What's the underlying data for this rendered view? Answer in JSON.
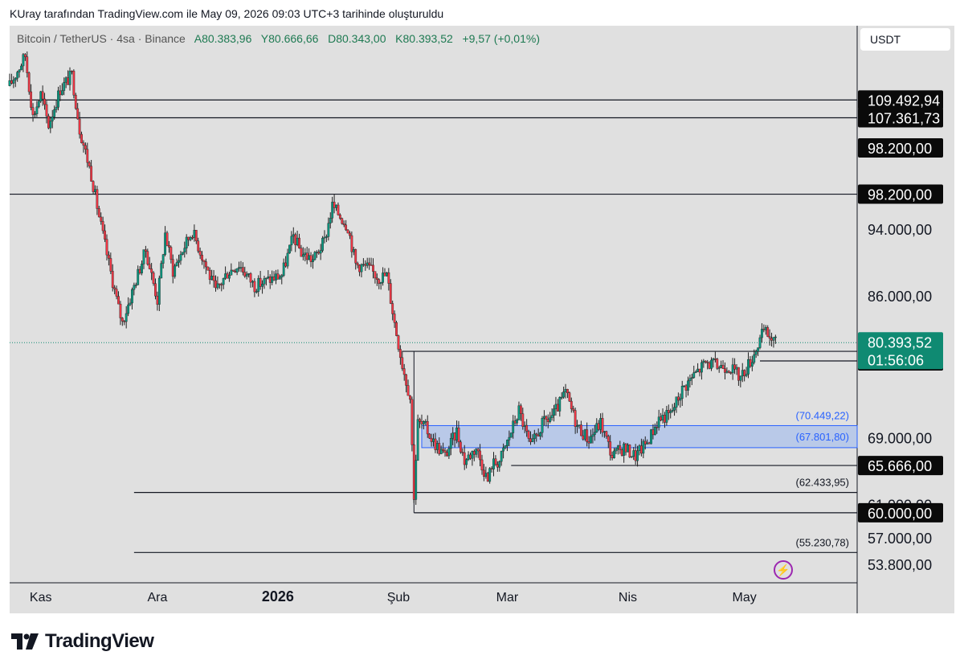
{
  "header": {
    "caption": "KUray tarafından TradingView.com ile May 09, 2026 09:03 UTC+3 tarihinde oluşturuldu"
  },
  "legend": {
    "symbol": "Bitcoin / TetherUS · 4sa · Binance",
    "open": "A80.383,96",
    "high": "Y80.666,66",
    "low": "D80.343,00",
    "close": "K80.393,52",
    "change": "+9,57 (+0,01%)"
  },
  "currency_label": "USDT",
  "brand": {
    "name": "TradingView",
    "icon": "tradingview-logo-icon"
  },
  "bolt_icon": "lightning-bolt-icon",
  "colors": {
    "up": "#089981",
    "down": "#f23645",
    "zone_fill": "#b9c9e8",
    "zone_line": "#2962ff",
    "price_badge": "#0f8a72"
  },
  "chart_data": {
    "type": "candlestick",
    "interval": "4h",
    "x_range": [
      "2025-10-24",
      "2026-05-30"
    ],
    "y_range": [
      51600,
      118400
    ],
    "x_ticks": [
      {
        "date": "2025-11-01",
        "label": "Kas",
        "bold": false
      },
      {
        "date": "2025-12-01",
        "label": "Ara",
        "bold": false
      },
      {
        "date": "2026-01-01",
        "label": "2026",
        "bold": true
      },
      {
        "date": "2026-02-01",
        "label": "Şub",
        "bold": false
      },
      {
        "date": "2026-03-01",
        "label": "Mar",
        "bold": false
      },
      {
        "date": "2026-04-01",
        "label": "Nis",
        "bold": false
      },
      {
        "date": "2026-05-01",
        "label": "May",
        "bold": false
      }
    ],
    "y_ticks": [
      {
        "value": 94000,
        "label": "94.000,00"
      },
      {
        "value": 86000,
        "label": "86.000,00"
      },
      {
        "value": 69000,
        "label": "69.000,00"
      },
      {
        "value": 61000,
        "label": "61.000,00"
      },
      {
        "value": 57000,
        "label": "57.000,00"
      },
      {
        "value": 53800,
        "label": "53.800,00"
      }
    ],
    "horizontal_lines": [
      {
        "value": 109492.94,
        "label": "109.492,94",
        "from": "2025-10-24"
      },
      {
        "value": 107361.73,
        "label": "107.361,73",
        "from": "2025-10-24"
      },
      {
        "value": 98200,
        "label": "98.200,00",
        "from": "2025-10-24"
      },
      {
        "value": 79354.67,
        "label": "79.354,67",
        "from": "2026-02-02"
      },
      {
        "value": 78203.03,
        "label": "78.203,03",
        "from": "2026-05-05"
      },
      {
        "value": 65666,
        "label": "65.666,00",
        "from": "2026-03-02"
      },
      {
        "value": 62433.95,
        "label": "(62.433,95)",
        "from": "2025-11-25"
      },
      {
        "value": 60000,
        "label": "60.000,00",
        "from": "2026-02-05"
      },
      {
        "value": 55230.78,
        "label": "(55.230,78)",
        "from": "2025-11-25"
      }
    ],
    "extra_price_badge": {
      "value": 98200,
      "label": "98.200,00"
    },
    "zone": {
      "from": "2026-02-07",
      "top": 70449.22,
      "bottom": 67801.8,
      "top_label": "(70.449,22)",
      "bottom_label": "(67.801,80)"
    },
    "last_price": {
      "value": 80393.52,
      "label": "80.393,52",
      "countdown": "01:56:06"
    },
    "path_points": [
      [
        "2025-10-24",
        111200
      ],
      [
        "2025-10-28",
        114800
      ],
      [
        "2025-10-30",
        107500
      ],
      [
        "2025-11-01",
        110200
      ],
      [
        "2025-11-03",
        106500
      ],
      [
        "2025-11-06",
        110800
      ],
      [
        "2025-11-09",
        112500
      ],
      [
        "2025-11-11",
        106000
      ],
      [
        "2025-11-14",
        100500
      ],
      [
        "2025-11-16",
        95500
      ],
      [
        "2025-11-18",
        91000
      ],
      [
        "2025-11-21",
        84500
      ],
      [
        "2025-11-22",
        82800
      ],
      [
        "2025-11-25",
        87200
      ],
      [
        "2025-11-28",
        91500
      ],
      [
        "2025-12-01",
        85500
      ],
      [
        "2025-12-03",
        93500
      ],
      [
        "2025-12-05",
        89000
      ],
      [
        "2025-12-08",
        92000
      ],
      [
        "2025-12-10",
        93800
      ],
      [
        "2025-12-13",
        90200
      ],
      [
        "2025-12-16",
        86500
      ],
      [
        "2025-12-19",
        88800
      ],
      [
        "2025-12-22",
        89800
      ],
      [
        "2025-12-26",
        87200
      ],
      [
        "2025-12-30",
        88000
      ],
      [
        "2026-01-02",
        88500
      ],
      [
        "2026-01-05",
        93200
      ],
      [
        "2026-01-07",
        91200
      ],
      [
        "2026-01-10",
        90300
      ],
      [
        "2026-01-13",
        92600
      ],
      [
        "2026-01-15",
        96800
      ],
      [
        "2026-01-17",
        95600
      ],
      [
        "2026-01-19",
        94300
      ],
      [
        "2026-01-21",
        89800
      ],
      [
        "2026-01-24",
        89400
      ],
      [
        "2026-01-27",
        88200
      ],
      [
        "2026-01-29",
        88500
      ],
      [
        "2026-01-31",
        82800
      ],
      [
        "2026-02-02",
        77800
      ],
      [
        "2026-02-04",
        73800
      ],
      [
        "2026-02-05",
        62200
      ],
      [
        "2026-02-06",
        70800
      ],
      [
        "2026-02-08",
        70200
      ],
      [
        "2026-02-10",
        68500
      ],
      [
        "2026-02-13",
        66800
      ],
      [
        "2026-02-16",
        69800
      ],
      [
        "2026-02-18",
        66200
      ],
      [
        "2026-02-21",
        67800
      ],
      [
        "2026-02-24",
        63800
      ],
      [
        "2026-02-25",
        65800
      ],
      [
        "2026-02-27",
        66200
      ],
      [
        "2026-03-01",
        68500
      ],
      [
        "2026-03-04",
        72300
      ],
      [
        "2026-03-07",
        67800
      ],
      [
        "2026-03-10",
        70600
      ],
      [
        "2026-03-13",
        71800
      ],
      [
        "2026-03-16",
        74400
      ],
      [
        "2026-03-19",
        70400
      ],
      [
        "2026-03-22",
        68800
      ],
      [
        "2026-03-25",
        70800
      ],
      [
        "2026-03-28",
        66800
      ],
      [
        "2026-03-31",
        67800
      ],
      [
        "2026-04-03",
        66800
      ],
      [
        "2026-04-06",
        68500
      ],
      [
        "2026-04-09",
        71300
      ],
      [
        "2026-04-12",
        71800
      ],
      [
        "2026-04-15",
        74800
      ],
      [
        "2026-04-18",
        76500
      ],
      [
        "2026-04-21",
        78000
      ],
      [
        "2026-04-24",
        77600
      ],
      [
        "2026-04-27",
        77600
      ],
      [
        "2026-04-30",
        76200
      ],
      [
        "2026-05-03",
        78600
      ],
      [
        "2026-05-06",
        81800
      ],
      [
        "2026-05-09",
        80393.52
      ]
    ]
  }
}
